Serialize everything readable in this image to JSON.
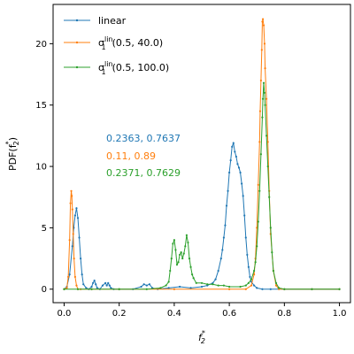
{
  "chart_data": {
    "type": "line",
    "xlabel": "f",
    "xlabel_sub": "2",
    "xlabel_sup": "*",
    "ylabel": "PDF(f",
    "ylabel_sub": "2",
    "ylabel_sup": "*",
    "ylabel_close": ")",
    "xlim": [
      -0.04,
      1.04
    ],
    "ylim": [
      -1.1,
      23.2
    ],
    "xticks": [
      0.0,
      0.2,
      0.4,
      0.6,
      0.8,
      1.0
    ],
    "xtick_labels": [
      "0.0",
      "0.2",
      "0.4",
      "0.6",
      "0.8",
      "1.0"
    ],
    "yticks": [
      0,
      5,
      10,
      15,
      20
    ],
    "ytick_labels": [
      "0",
      "5",
      "10",
      "15",
      "20"
    ],
    "grid": false,
    "legend_position": "top-left",
    "series": [
      {
        "name": "linear",
        "legend_html": "linear",
        "color": "#1f77b4",
        "annotation": "0.2363, 0.7637",
        "x": [
          0.0,
          0.01,
          0.02,
          0.03,
          0.035,
          0.04,
          0.045,
          0.05,
          0.055,
          0.06,
          0.065,
          0.07,
          0.08,
          0.09,
          0.1,
          0.105,
          0.11,
          0.115,
          0.12,
          0.13,
          0.14,
          0.15,
          0.155,
          0.16,
          0.165,
          0.17,
          0.18,
          0.2,
          0.25,
          0.28,
          0.29,
          0.3,
          0.31,
          0.32,
          0.34,
          0.38,
          0.42,
          0.46,
          0.5,
          0.52,
          0.54,
          0.55,
          0.56,
          0.57,
          0.575,
          0.58,
          0.585,
          0.59,
          0.595,
          0.6,
          0.605,
          0.61,
          0.615,
          0.62,
          0.625,
          0.63,
          0.635,
          0.64,
          0.645,
          0.65,
          0.655,
          0.66,
          0.665,
          0.67,
          0.675,
          0.68,
          0.69,
          0.7,
          0.72,
          0.75,
          0.8,
          0.9,
          1.0
        ],
        "y": [
          0.0,
          0.2,
          1.2,
          3.5,
          5.0,
          6.0,
          6.6,
          5.8,
          4.2,
          2.5,
          1.2,
          0.4,
          0.1,
          0.0,
          0.2,
          0.5,
          0.7,
          0.4,
          0.1,
          0.0,
          0.3,
          0.5,
          0.3,
          0.5,
          0.3,
          0.1,
          0.0,
          0.0,
          0.0,
          0.2,
          0.4,
          0.3,
          0.4,
          0.1,
          0.0,
          0.1,
          0.2,
          0.1,
          0.2,
          0.3,
          0.5,
          0.8,
          1.5,
          2.5,
          3.2,
          4.2,
          5.2,
          6.8,
          8.0,
          9.5,
          10.5,
          11.6,
          11.9,
          11.2,
          10.8,
          10.2,
          9.9,
          9.5,
          8.6,
          7.6,
          6.0,
          4.2,
          2.8,
          1.8,
          1.0,
          0.6,
          0.3,
          0.1,
          0.0,
          0.0,
          0.0,
          0.0,
          0.0
        ]
      },
      {
        "name": "σ1lin(0.5, 40.0)",
        "legend_html": "σ<tspan class=\"sub\" dy=\"-5\">lin</tspan><tspan class=\"sub\" dx=\"-13\" dy=\"9\">1</tspan><tspan dx=\"7\" dy=\"-4\">(0.5, 40.0)</tspan>",
        "color": "#ff7f0e",
        "annotation": "0.11, 0.89",
        "x": [
          0.0,
          0.01,
          0.015,
          0.02,
          0.023,
          0.026,
          0.028,
          0.03,
          0.033,
          0.036,
          0.04,
          0.045,
          0.05,
          0.06,
          0.1,
          0.2,
          0.4,
          0.6,
          0.66,
          0.68,
          0.69,
          0.695,
          0.7,
          0.705,
          0.71,
          0.712,
          0.715,
          0.718,
          0.72,
          0.722,
          0.725,
          0.728,
          0.73,
          0.735,
          0.74,
          0.745,
          0.75,
          0.76,
          0.77,
          0.78,
          0.8,
          0.9,
          1.0
        ],
        "y": [
          0.0,
          0.1,
          1.0,
          4.0,
          7.0,
          8.0,
          7.6,
          6.5,
          4.5,
          2.5,
          1.0,
          0.3,
          0.0,
          0.0,
          0.0,
          0.0,
          0.0,
          0.0,
          0.0,
          0.3,
          1.2,
          2.5,
          5.0,
          8.5,
          12.0,
          14.5,
          17.0,
          19.5,
          21.8,
          22.0,
          21.5,
          20.0,
          18.0,
          15.5,
          12.0,
          8.0,
          4.5,
          1.5,
          0.3,
          0.0,
          0.0,
          0.0,
          0.0
        ]
      },
      {
        "name": "σ1lin(0.5, 100.0)",
        "legend_html": "σ<tspan class=\"sub\" dy=\"-5\">lin</tspan><tspan class=\"sub\" dx=\"-13\" dy=\"9\">1</tspan><tspan dx=\"7\" dy=\"-4\">(0.5, 100.0)</tspan>",
        "color": "#2ca02c",
        "annotation": "0.2371, 0.7629",
        "x": [
          0.0,
          0.05,
          0.1,
          0.2,
          0.3,
          0.35,
          0.37,
          0.38,
          0.385,
          0.39,
          0.395,
          0.4,
          0.405,
          0.41,
          0.415,
          0.42,
          0.425,
          0.43,
          0.435,
          0.44,
          0.445,
          0.45,
          0.455,
          0.46,
          0.465,
          0.47,
          0.48,
          0.5,
          0.52,
          0.54,
          0.56,
          0.58,
          0.6,
          0.64,
          0.66,
          0.67,
          0.68,
          0.69,
          0.695,
          0.7,
          0.705,
          0.71,
          0.715,
          0.72,
          0.722,
          0.725,
          0.728,
          0.73,
          0.735,
          0.74,
          0.745,
          0.75,
          0.755,
          0.76,
          0.77,
          0.78,
          0.8,
          0.9,
          1.0
        ],
        "y": [
          0.0,
          0.0,
          0.0,
          0.0,
          0.0,
          0.1,
          0.3,
          0.6,
          1.5,
          2.5,
          3.7,
          4.0,
          3.2,
          2.0,
          2.2,
          2.8,
          3.0,
          2.5,
          2.9,
          3.5,
          4.4,
          3.8,
          2.5,
          1.8,
          1.2,
          0.9,
          0.5,
          0.5,
          0.4,
          0.4,
          0.3,
          0.3,
          0.2,
          0.2,
          0.3,
          0.5,
          0.8,
          1.5,
          2.2,
          3.5,
          5.5,
          8.0,
          11.0,
          14.0,
          15.5,
          16.8,
          16.0,
          15.0,
          12.5,
          10.0,
          7.5,
          5.0,
          3.0,
          1.5,
          0.5,
          0.1,
          0.0,
          0.0,
          0.0
        ]
      }
    ]
  }
}
